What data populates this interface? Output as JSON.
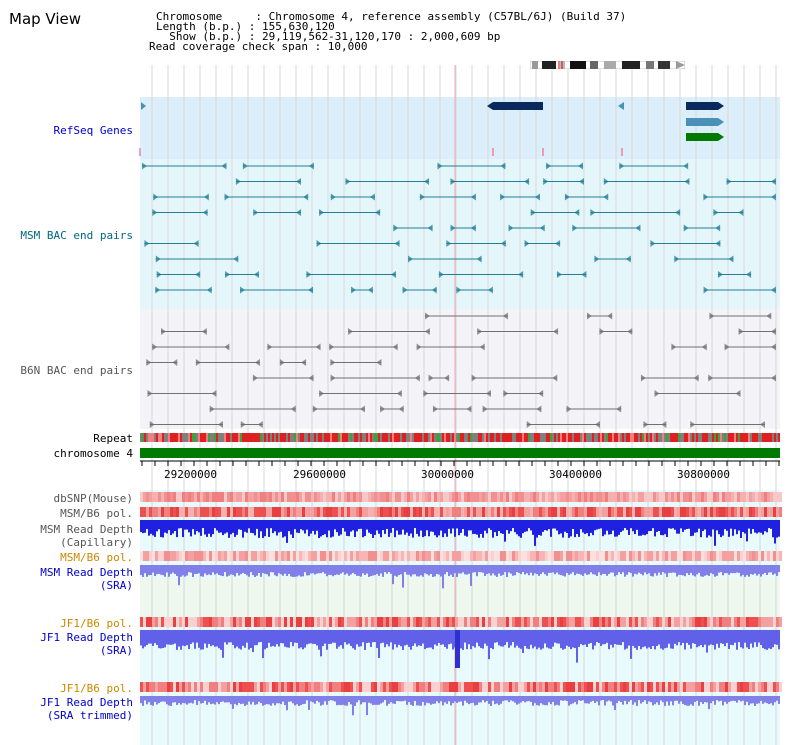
{
  "title": "Map View",
  "header": {
    "lines": [
      "Chromosome     : Chromosome 4, reference assembly (C57BL/6J) (Build 37)",
      "Length (b.p.) : 155,630,120",
      "  Show (b.p.) : 29,119,562-31,120,170 : 2,000,609 bp",
      "Read coverage check span : 10,000"
    ]
  },
  "tracks": {
    "refseq": "RefSeq Genes",
    "msm_bac": "MSM BAC end pairs",
    "b6n_bac": "B6N BAC end pairs",
    "repeat": "Repeat",
    "chromosome": "chromosome 4",
    "dbsnp": "dbSNP(Mouse)",
    "msm_b6_pol_1": "MSM/B6 pol.",
    "msm_depth_cap_1": "MSM Read Depth",
    "msm_depth_cap_2": "(Capillary)",
    "msm_b6_pol_2": "MSM/B6 pol.",
    "msm_depth_sra_1": "MSM Read Depth",
    "msm_depth_sra_2": "(SRA)",
    "jf1_b6_pol_1": "JF1/B6 pol.",
    "jf1_depth_sra_1": "JF1 Read Depth",
    "jf1_depth_sra_2": "(SRA)",
    "jf1_b6_pol_2": "JF1/B6 pol.",
    "jf1_depth_trim_1": "JF1 Read Depth",
    "jf1_depth_trim_2": "(SRA trimmed)"
  },
  "axis": {
    "ticks": [
      "29200000",
      "29600000",
      "30000000",
      "30400000",
      "30800000"
    ]
  },
  "colors": {
    "label_blue": "#0000cc",
    "label_teal": "#006680",
    "label_orange": "#cc8800",
    "gene_dark": "#0a2a5e",
    "gene_mid": "#4a90b8",
    "gene_green": "#007a00"
  }
}
